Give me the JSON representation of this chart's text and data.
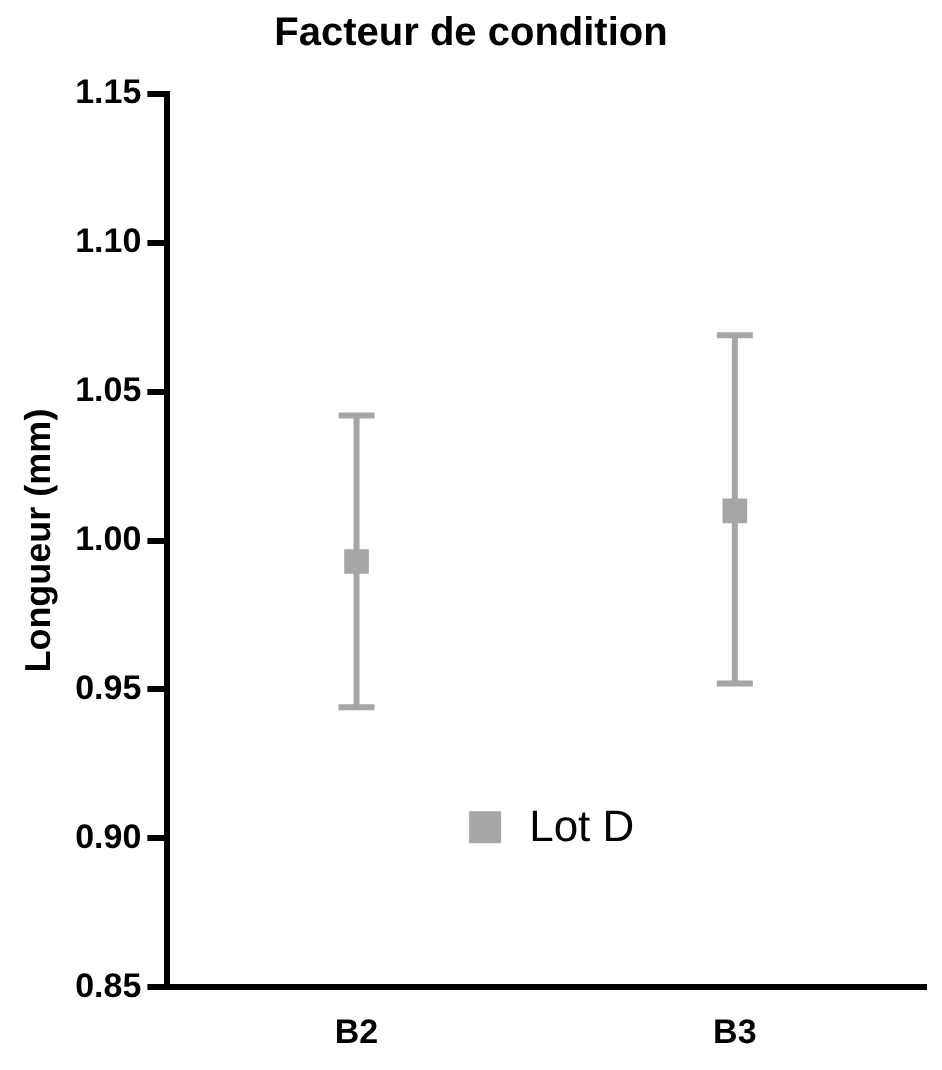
{
  "chart_data": {
    "type": "scatter",
    "title": "Facteur de condition",
    "ylabel": "Longueur (mm)",
    "categories": [
      "B2",
      "B3"
    ],
    "series": [
      {
        "name": "Lot D",
        "color": "#a6a6a6",
        "values": [
          0.993,
          1.01
        ],
        "errors": [
          [
            0.944,
            1.042
          ],
          [
            0.952,
            1.069
          ]
        ]
      }
    ],
    "ylim": [
      0.85,
      1.15
    ],
    "yticks": [
      {
        "value": 0.85,
        "label": "0.85"
      },
      {
        "value": 0.9,
        "label": "0.90"
      },
      {
        "value": 0.95,
        "label": "0.95"
      },
      {
        "value": 1.0,
        "label": "1.00"
      },
      {
        "value": 1.05,
        "label": "1.05"
      },
      {
        "value": 1.1,
        "label": "1.10"
      },
      {
        "value": 1.15,
        "label": "1.15"
      }
    ],
    "grid": false,
    "legend": "bottom",
    "marker": "square"
  }
}
